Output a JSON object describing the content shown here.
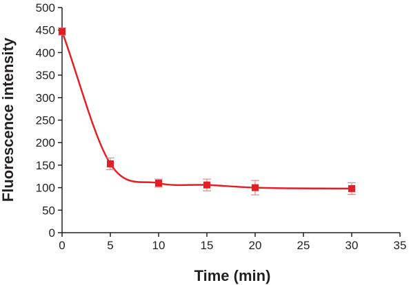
{
  "chart_data": {
    "type": "line",
    "title": "",
    "xlabel": "Time (min)",
    "ylabel": "Fluorescence intensity",
    "xlim": [
      0,
      35
    ],
    "ylim": [
      0,
      500
    ],
    "xticks": [
      0,
      5,
      10,
      15,
      20,
      25,
      30,
      35
    ],
    "yticks": [
      0,
      50,
      100,
      150,
      200,
      250,
      300,
      350,
      400,
      450,
      500
    ],
    "grid": false,
    "legend": "none",
    "marker": "square",
    "color": "#e31e24",
    "error_color": "#e8868a",
    "axis_color": "#231f20",
    "series": [
      {
        "x": [
          0,
          5,
          10,
          15,
          20,
          30
        ],
        "y": [
          447,
          153,
          110,
          106,
          100,
          98
        ],
        "error": [
          8,
          13,
          9,
          13,
          16,
          13
        ]
      }
    ]
  }
}
